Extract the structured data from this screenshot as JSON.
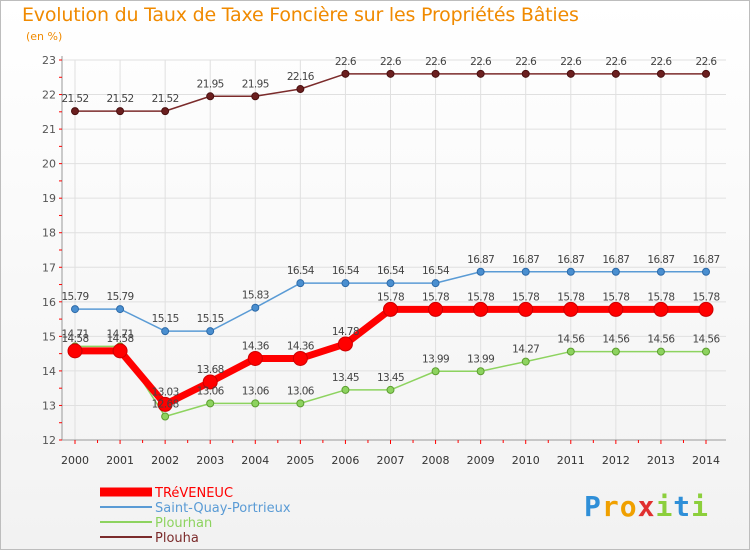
{
  "chart_data": {
    "type": "line",
    "title": "Evolution du Taux de Taxe Foncière sur les Propriétés Bâties",
    "ylabel": "(en %)",
    "xlabel": "",
    "x": [
      "2000",
      "2001",
      "2002",
      "2003",
      "2004",
      "2005",
      "2006",
      "2007",
      "2008",
      "2009",
      "2010",
      "2011",
      "2012",
      "2013",
      "2014"
    ],
    "yticks": [
      "12",
      "13",
      "14",
      "15",
      "16",
      "17",
      "18",
      "19",
      "20",
      "21",
      "22",
      "23"
    ],
    "ylim": [
      12,
      23
    ],
    "grid": true,
    "series": [
      {
        "name": "TRéVENEUC",
        "color": "#ff0000",
        "values": [
          14.58,
          14.58,
          13.03,
          13.68,
          14.36,
          14.36,
          14.78,
          15.78,
          15.78,
          15.78,
          15.78,
          15.78,
          15.78,
          15.78,
          15.78
        ],
        "labels": [
          "14.58",
          "14.58",
          "13.03",
          "13.68",
          "14.36",
          "14.36",
          "14.78",
          "15.78",
          "15.78",
          "15.78",
          "15.78",
          "15.78",
          "15.78",
          "15.78",
          "15.78"
        ]
      },
      {
        "name": "Saint-Quay-Portrieux",
        "color": "#5a9bd5",
        "values": [
          15.79,
          15.79,
          15.15,
          15.15,
          15.83,
          16.54,
          16.54,
          16.54,
          16.54,
          16.87,
          16.87,
          16.87,
          16.87,
          16.87,
          16.87
        ],
        "labels": [
          "15.79",
          "15.79",
          "15.15",
          "15.15",
          "15.83",
          "16.54",
          "16.54",
          "16.54",
          "16.54",
          "16.87",
          "16.87",
          "16.87",
          "16.87",
          "16.87",
          "16.87"
        ]
      },
      {
        "name": "Plourhan",
        "color": "#8dd35f",
        "values": [
          14.71,
          14.71,
          12.68,
          13.06,
          13.06,
          13.06,
          13.45,
          13.45,
          13.99,
          13.99,
          14.27,
          14.56,
          14.56,
          14.56,
          14.56
        ],
        "labels": [
          "14.71",
          "14.71",
          "12.68",
          "13.06",
          "13.06",
          "13.06",
          "13.45",
          "13.45",
          "13.99",
          "13.99",
          "14.27",
          "14.56",
          "14.56",
          "14.56",
          "14.56"
        ]
      },
      {
        "name": "Plouha",
        "color": "#7b2b2b",
        "values": [
          21.52,
          21.52,
          21.52,
          21.95,
          21.95,
          22.16,
          22.6,
          22.6,
          22.6,
          22.6,
          22.6,
          22.6,
          22.6,
          22.6,
          22.6
        ],
        "labels": [
          "21.52",
          "21.52",
          "21.52",
          "21.95",
          "21.95",
          "22.16",
          "22.6",
          "22.6",
          "22.6",
          "22.6",
          "22.6",
          "22.6",
          "22.6",
          "22.6",
          "22.6"
        ]
      }
    ]
  },
  "logo": {
    "letters": [
      "P",
      "r",
      "o",
      "x",
      "i",
      "t",
      "i"
    ],
    "colors": [
      "#2f8fd8",
      "#f0a000",
      "#f0a000",
      "#e03030",
      "#8ccf3c",
      "#2f8fd8",
      "#8ccf3c"
    ]
  }
}
